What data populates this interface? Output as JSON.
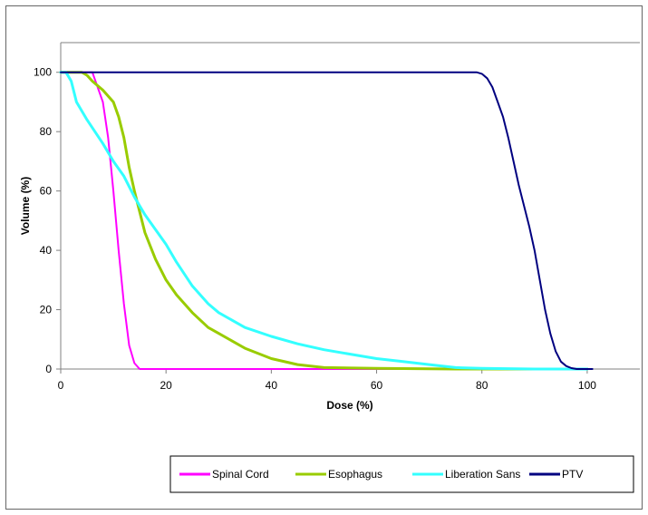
{
  "chart_data": {
    "type": "line",
    "title": "",
    "xlabel": "Dose (%)",
    "ylabel": "Volume (%)",
    "xlim": [
      0,
      110
    ],
    "ylim": [
      0,
      110
    ],
    "xticks": [
      0,
      20,
      40,
      60,
      80,
      100
    ],
    "yticks": [
      0,
      20,
      40,
      60,
      80,
      100
    ],
    "grid": "horizontal line at 110 only",
    "legend_position": "bottom",
    "series": [
      {
        "name": "Spinal Cord",
        "color": "#FF00FF",
        "x": [
          0,
          5,
          6,
          7,
          8,
          9,
          10,
          11,
          12,
          13,
          14,
          15,
          20,
          50,
          100
        ],
        "y": [
          100,
          100,
          100,
          95,
          90,
          78,
          60,
          40,
          22,
          8,
          2,
          0,
          0,
          0,
          0
        ]
      },
      {
        "name": "Esophagus",
        "color": "#99CC00",
        "x": [
          0,
          4,
          5,
          6,
          8,
          10,
          11,
          12,
          13,
          14,
          15,
          16,
          18,
          20,
          22,
          25,
          28,
          30,
          35,
          40,
          45,
          50,
          60,
          75,
          100
        ],
        "y": [
          100,
          100,
          99,
          97,
          94,
          90,
          85,
          78,
          68,
          60,
          53,
          46,
          37,
          30,
          25,
          19,
          14,
          12,
          7,
          3.5,
          1.5,
          0.5,
          0.2,
          0,
          0
        ],
        "stroke_width": 3
      },
      {
        "name": "Liberation Sans",
        "color": "#33FFFF",
        "x": [
          0,
          1,
          2,
          3,
          5,
          8,
          10,
          12,
          14,
          16,
          18,
          20,
          22,
          25,
          28,
          30,
          35,
          40,
          45,
          50,
          55,
          60,
          65,
          70,
          75,
          80,
          90,
          100
        ],
        "y": [
          100,
          100,
          97,
          90,
          84,
          76,
          70,
          65,
          58,
          52,
          47,
          42,
          36,
          28,
          22,
          19,
          14,
          11,
          8.5,
          6.5,
          5,
          3.5,
          2.5,
          1.5,
          0.5,
          0.2,
          0,
          0
        ],
        "stroke_width": 3
      },
      {
        "name": "PTV",
        "color": "#000080",
        "x": [
          0,
          79,
          80,
          81,
          82,
          83,
          84,
          85,
          86,
          87,
          88,
          89,
          90,
          91,
          92,
          93,
          94,
          95,
          96,
          97,
          98,
          99,
          100,
          101
        ],
        "y": [
          100,
          100,
          99.5,
          98,
          95,
          90,
          85,
          78,
          70,
          62,
          55,
          48,
          40,
          30,
          20,
          12,
          6,
          2.5,
          1,
          0.3,
          0,
          0,
          0,
          0
        ]
      }
    ]
  }
}
